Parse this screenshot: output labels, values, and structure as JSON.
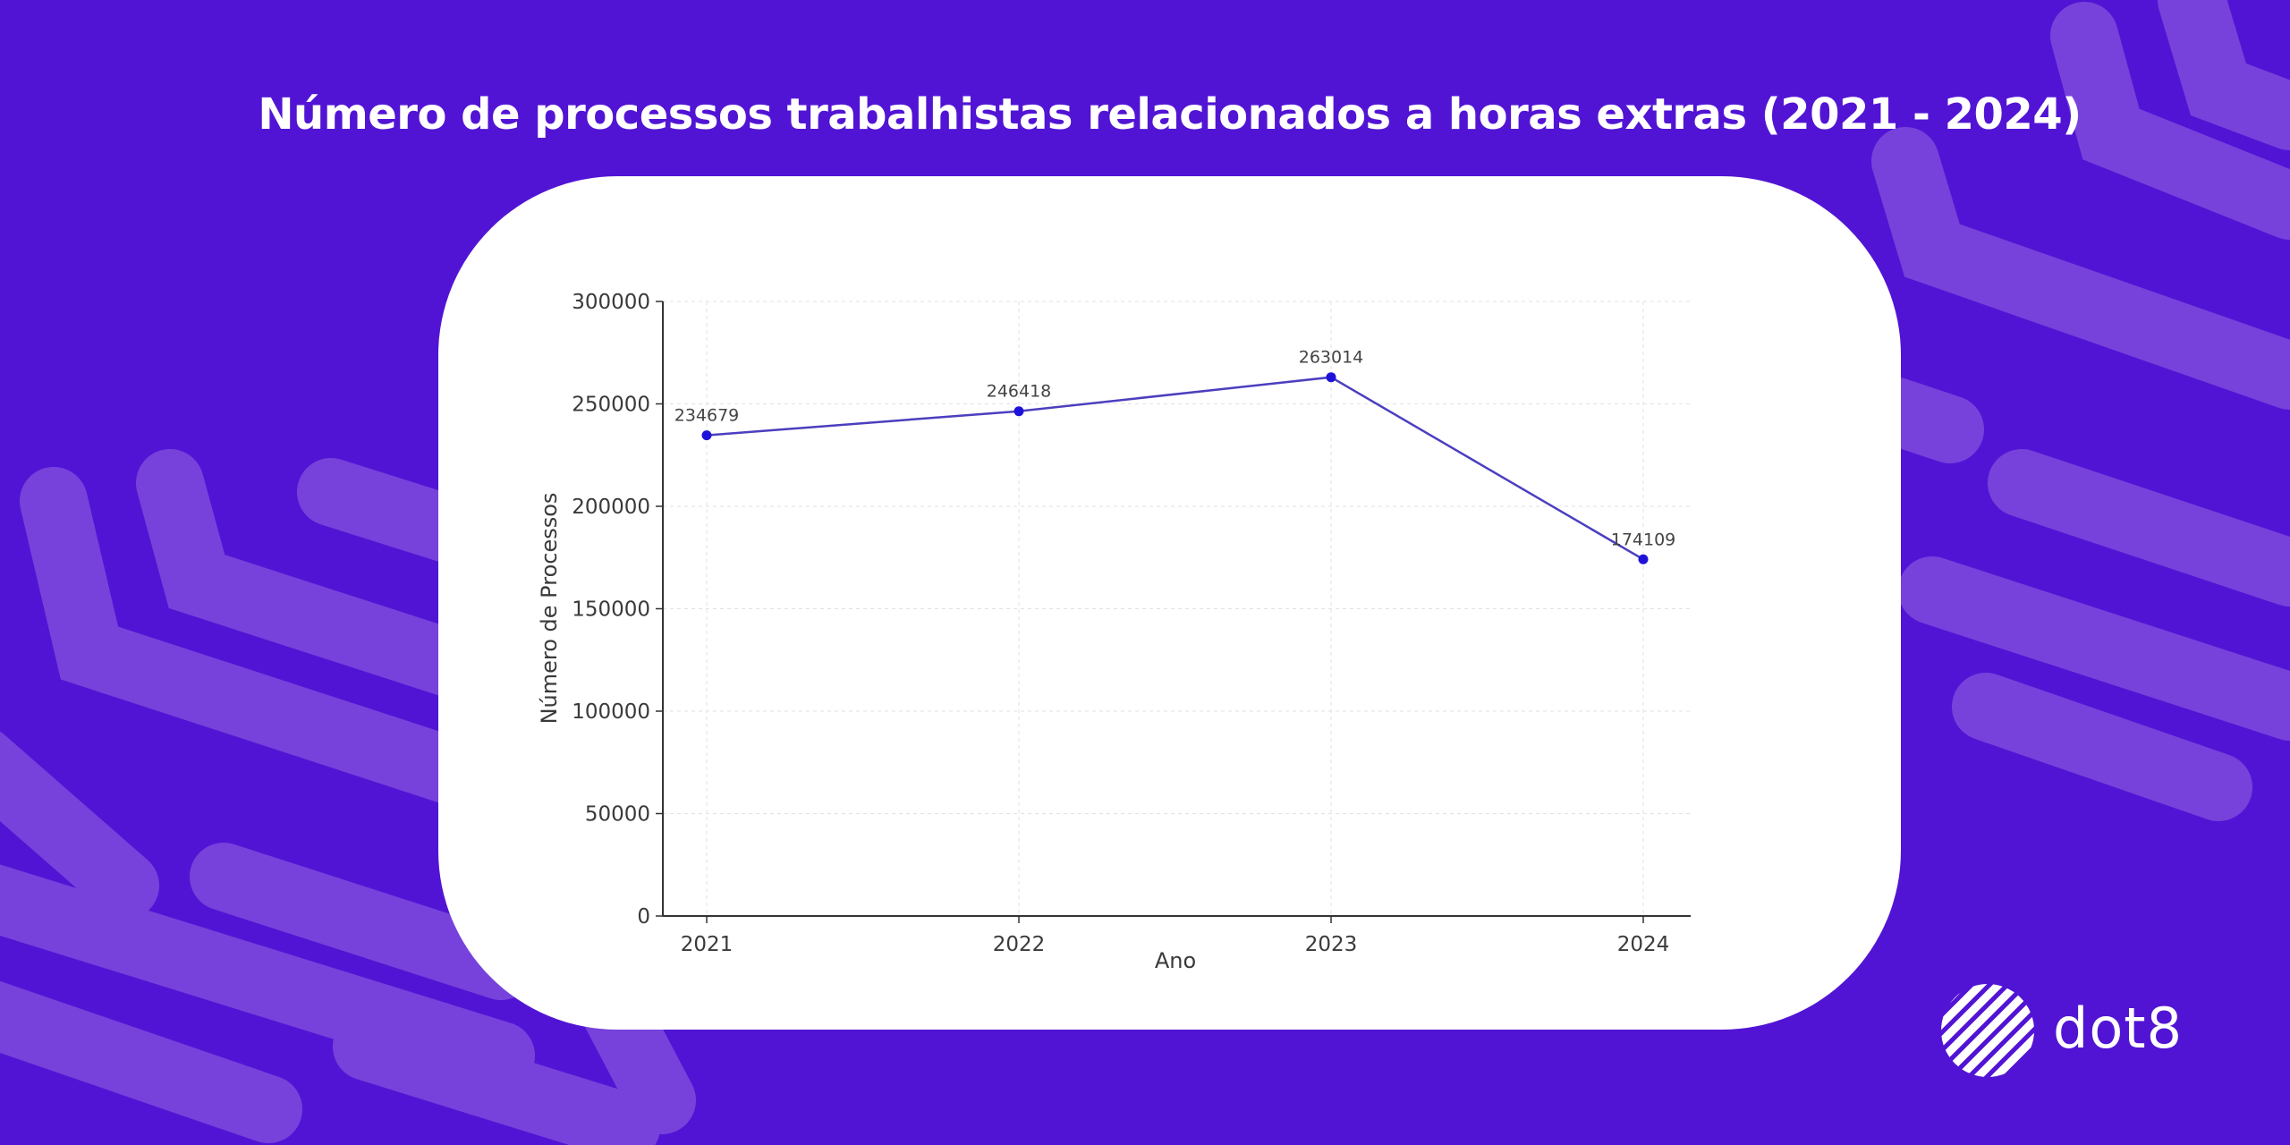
{
  "title": "Número de processos trabalhistas relacionados a horas extras (2021 - 2024)",
  "brand": {
    "name": "dot8",
    "logo_icon": "striped-round-logo-icon"
  },
  "colors": {
    "background": "#5214d4",
    "pattern": "#7b47dc",
    "card": "#ffffff",
    "line": "#4b3fbf",
    "marker": "#1f12d8"
  },
  "chart_data": {
    "type": "line",
    "categories": [
      "2021",
      "2022",
      "2023",
      "2024"
    ],
    "values": [
      234679,
      246418,
      263014,
      174109
    ],
    "data_labels": [
      "234679",
      "246418",
      "263014",
      "174109"
    ],
    "xlabel": "Ano",
    "ylabel": "Número de Processos",
    "ylim": [
      0,
      300000
    ],
    "yticks": [
      0,
      50000,
      100000,
      150000,
      200000,
      250000,
      300000
    ],
    "ytick_labels": [
      "0",
      "50000",
      "100000",
      "150000",
      "200000",
      "250000",
      "300000"
    ],
    "grid": true,
    "legend": "none"
  }
}
